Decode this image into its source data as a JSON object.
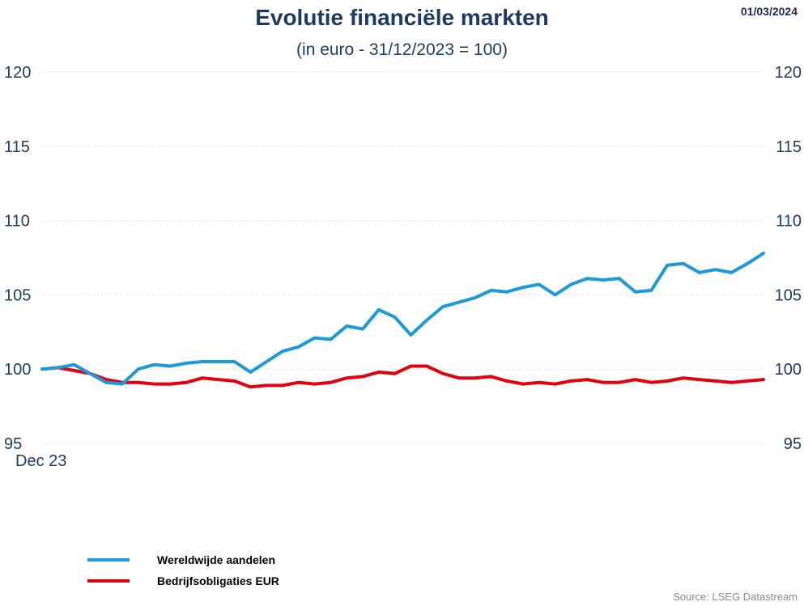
{
  "header": {
    "title": "Evolutie financiële markten",
    "subtitle": "(in euro - 31/12/2023 = 100)",
    "date": "01/03/2024"
  },
  "footer": {
    "source": "Source: LSEG Datastream"
  },
  "chart_data": {
    "type": "line",
    "title": "Evolutie financiële markten",
    "subtitle": "(in euro - 31/12/2023 = 100)",
    "y_ticks": [
      95,
      100,
      105,
      110,
      115,
      120
    ],
    "ylim": [
      95,
      120
    ],
    "x_tick_labels": [
      "Dec 23"
    ],
    "grid": true,
    "legend_position": "bottom-left",
    "series": [
      {
        "name": "Wereldwijde aandelen",
        "color": "#1a9bd7",
        "values": [
          100.0,
          100.1,
          100.3,
          99.7,
          99.1,
          99.0,
          100.0,
          100.3,
          100.2,
          100.4,
          100.5,
          100.5,
          100.5,
          99.8,
          100.5,
          101.2,
          101.5,
          102.1,
          102.0,
          102.9,
          102.7,
          104.0,
          103.5,
          102.3,
          103.3,
          104.2,
          104.5,
          104.8,
          105.3,
          105.2,
          105.5,
          105.7,
          105.0,
          105.7,
          106.1,
          106.0,
          106.1,
          105.2,
          105.3,
          107.0,
          107.1,
          106.5,
          106.7,
          106.5,
          107.1,
          107.8
        ]
      },
      {
        "name": "Bedrijfsobligaties EUR",
        "color": "#e3000f",
        "values": [
          100.0,
          100.1,
          99.9,
          99.7,
          99.3,
          99.1,
          99.1,
          99.0,
          99.0,
          99.1,
          99.4,
          99.3,
          99.2,
          98.8,
          98.9,
          98.9,
          99.1,
          99.0,
          99.1,
          99.4,
          99.5,
          99.8,
          99.7,
          100.2,
          100.2,
          99.7,
          99.4,
          99.4,
          99.5,
          99.2,
          99.0,
          99.1,
          99.0,
          99.2,
          99.3,
          99.1,
          99.1,
          99.3,
          99.1,
          99.2,
          99.4,
          99.3,
          99.2,
          99.1,
          99.2,
          99.3
        ]
      }
    ]
  }
}
